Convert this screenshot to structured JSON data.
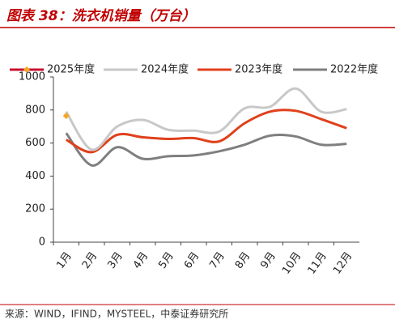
{
  "chart_data": {
    "type": "line",
    "title": "图表 38：洗衣机销量（万台）",
    "source": "来源：WIND，IFIND，MYSTEEL，中泰证券研究所",
    "categories": [
      "1月",
      "2月",
      "3月",
      "4月",
      "5月",
      "6月",
      "7月",
      "8月",
      "9月",
      "10月",
      "11月",
      "12月"
    ],
    "series": [
      {
        "name": "2025年度",
        "color": "#c8102e",
        "marker_color": "#f5a623",
        "marker": "diamond",
        "values": [
          765,
          null,
          null,
          null,
          null,
          null,
          null,
          null,
          null,
          null,
          null,
          null
        ]
      },
      {
        "name": "2024年度",
        "color": "#c8c8c8",
        "values": [
          790,
          560,
          700,
          740,
          680,
          675,
          670,
          810,
          820,
          930,
          790,
          805
        ]
      },
      {
        "name": "2023年度",
        "color": "#e0401c",
        "values": [
          620,
          545,
          650,
          635,
          625,
          630,
          610,
          720,
          790,
          795,
          745,
          690
        ]
      },
      {
        "name": "2022年度",
        "color": "#7f7f7f",
        "values": [
          660,
          465,
          575,
          505,
          520,
          525,
          550,
          590,
          645,
          640,
          590,
          595
        ]
      }
    ],
    "ylim": [
      0,
      1000
    ],
    "yticks": [
      0,
      200,
      400,
      600,
      800,
      1000
    ],
    "grid": false
  }
}
